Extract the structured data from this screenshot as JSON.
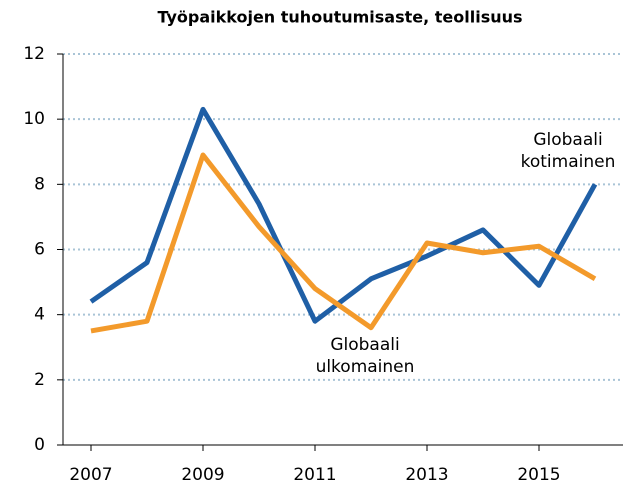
{
  "chart_data": {
    "type": "line",
    "title": "Työpaikkojen tuhoutumisaste, teollisuus",
    "x": [
      2007,
      2008,
      2009,
      2010,
      2011,
      2012,
      2013,
      2014,
      2015,
      2016
    ],
    "series": [
      {
        "name": "Globaali kotimainen",
        "color": "#1f5fa6",
        "values": [
          4.4,
          5.6,
          10.3,
          7.4,
          3.8,
          5.1,
          5.8,
          6.6,
          4.9,
          8.0
        ]
      },
      {
        "name": "Globaali ulkomainen",
        "color": "#f39a2b",
        "values": [
          3.5,
          3.8,
          8.9,
          6.7,
          4.8,
          3.6,
          6.2,
          5.9,
          6.1,
          5.1
        ]
      }
    ],
    "xlim": [
      2006.5,
      2016.5
    ],
    "xticks": [
      2007,
      2009,
      2011,
      2013,
      2015
    ],
    "ylim": [
      0,
      12
    ],
    "yticks": [
      0,
      2,
      4,
      6,
      8,
      10,
      12
    ],
    "grid": true
  }
}
